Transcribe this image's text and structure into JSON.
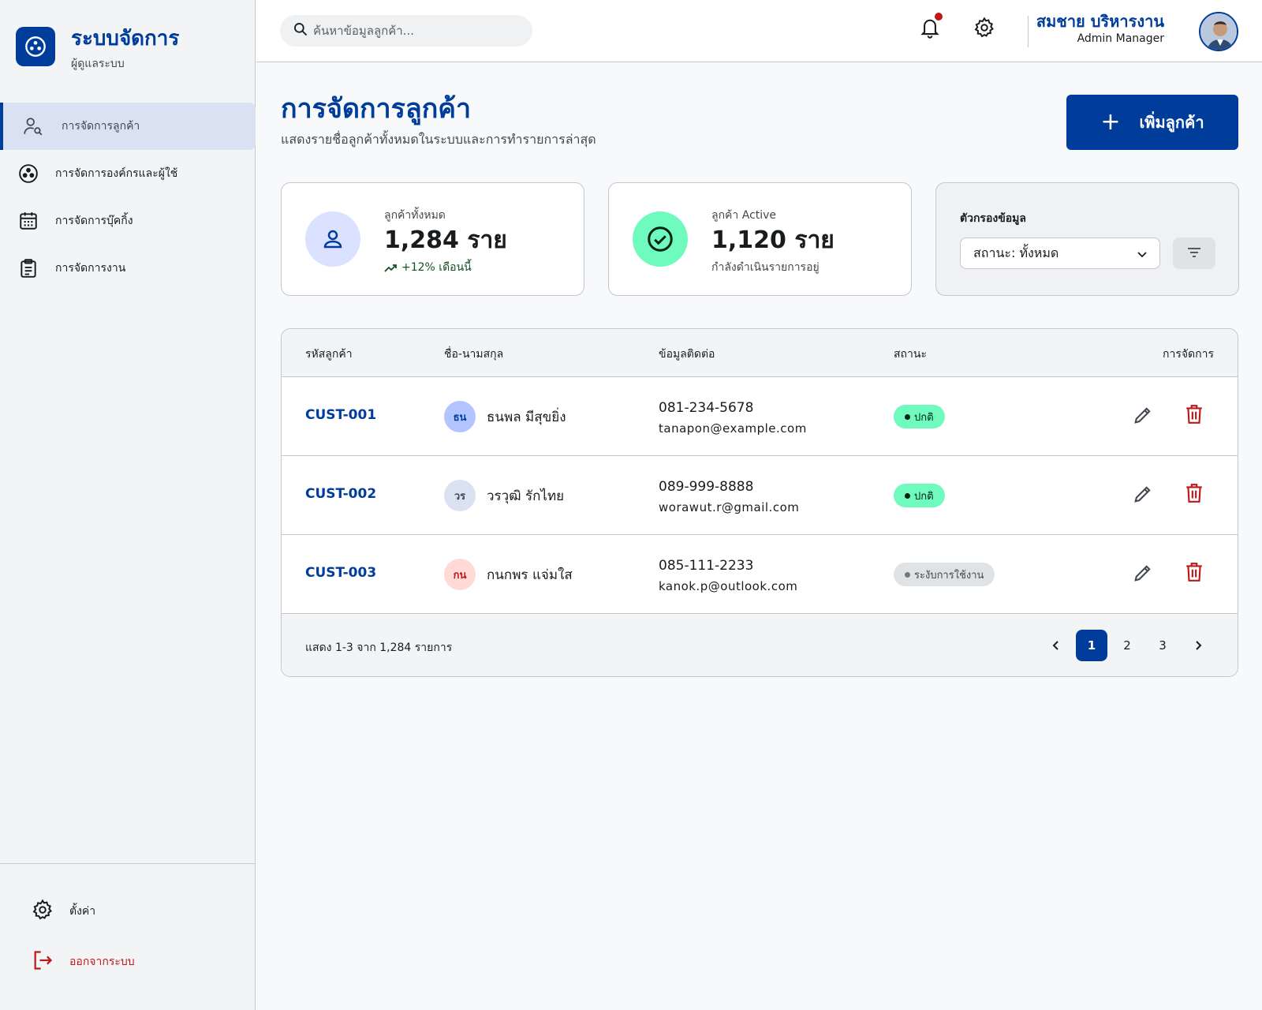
{
  "brand": {
    "title": "ระบบจัดการ",
    "subtitle": "ผู้ดูแลระบบ"
  },
  "sidebar": {
    "items": [
      {
        "label": "การจัดการลูกค้า",
        "icon": "user-search-icon",
        "active": true
      },
      {
        "label": "การจัดการองค์กรและผู้ใช้",
        "icon": "org-icon",
        "active": false
      },
      {
        "label": "การจัดการบุ๊คกิ้ง",
        "icon": "calendar-icon",
        "active": false
      },
      {
        "label": "การจัดการงาน",
        "icon": "clipboard-icon",
        "active": false
      }
    ],
    "settings_label": "ตั้งค่า",
    "logout_label": "ออกจากระบบ"
  },
  "search": {
    "placeholder": "ค้นหาข้อมูลลูกค้า..."
  },
  "user": {
    "name": "สมชาย บริหารงาน",
    "role": "Admin Manager"
  },
  "page": {
    "title": "การจัดการลูกค้า",
    "subtitle": "แสดงรายชื่อลูกค้าทั้งหมดในระบบและการทำรายการล่าสุด",
    "add_button": "เพิ่มลูกค้า"
  },
  "stats": {
    "total": {
      "label": "ลูกค้าทั้งหมด",
      "value": "1,284 ราย",
      "note": "+12% เดือนนี้"
    },
    "active": {
      "label": "ลูกค้า Active",
      "value": "1,120 ราย",
      "note": "กำลังดำเนินรายการอยู่"
    }
  },
  "filter": {
    "title": "ตัวกรองข้อมูล",
    "selected": "สถานะ: ทั้งหมด"
  },
  "table": {
    "headers": {
      "id": "รหัสลูกค้า",
      "name": "ชื่อ-นามสกุล",
      "contact": "ข้อมูลติดต่อ",
      "status": "สถานะ",
      "actions": "การจัดการ"
    },
    "rows": [
      {
        "id": "CUST-001",
        "initials": "ธน",
        "name": "ธนพล มีสุขยิ่ง",
        "phone": "081-234-5678",
        "email": "tanapon@example.com",
        "status": "ปกติ"
      },
      {
        "id": "CUST-002",
        "initials": "วร",
        "name": "วรวุฒิ รักไทย",
        "phone": "089-999-8888",
        "email": "worawut.r@gmail.com",
        "status": "ปกติ"
      },
      {
        "id": "CUST-003",
        "initials": "กน",
        "name": "กนกพร แจ่มใส",
        "phone": "085-111-2233",
        "email": "kanok.p@outlook.com",
        "status": "ระงับการใช้งาน"
      }
    ],
    "footer": "แสดง 1-3 จาก 1,284 รายการ",
    "pages": [
      "1",
      "2",
      "3"
    ],
    "current_page": "1"
  },
  "colors": {
    "primary": "#003d9b",
    "danger": "#ba1a1a",
    "success": "#6ffbbe"
  }
}
